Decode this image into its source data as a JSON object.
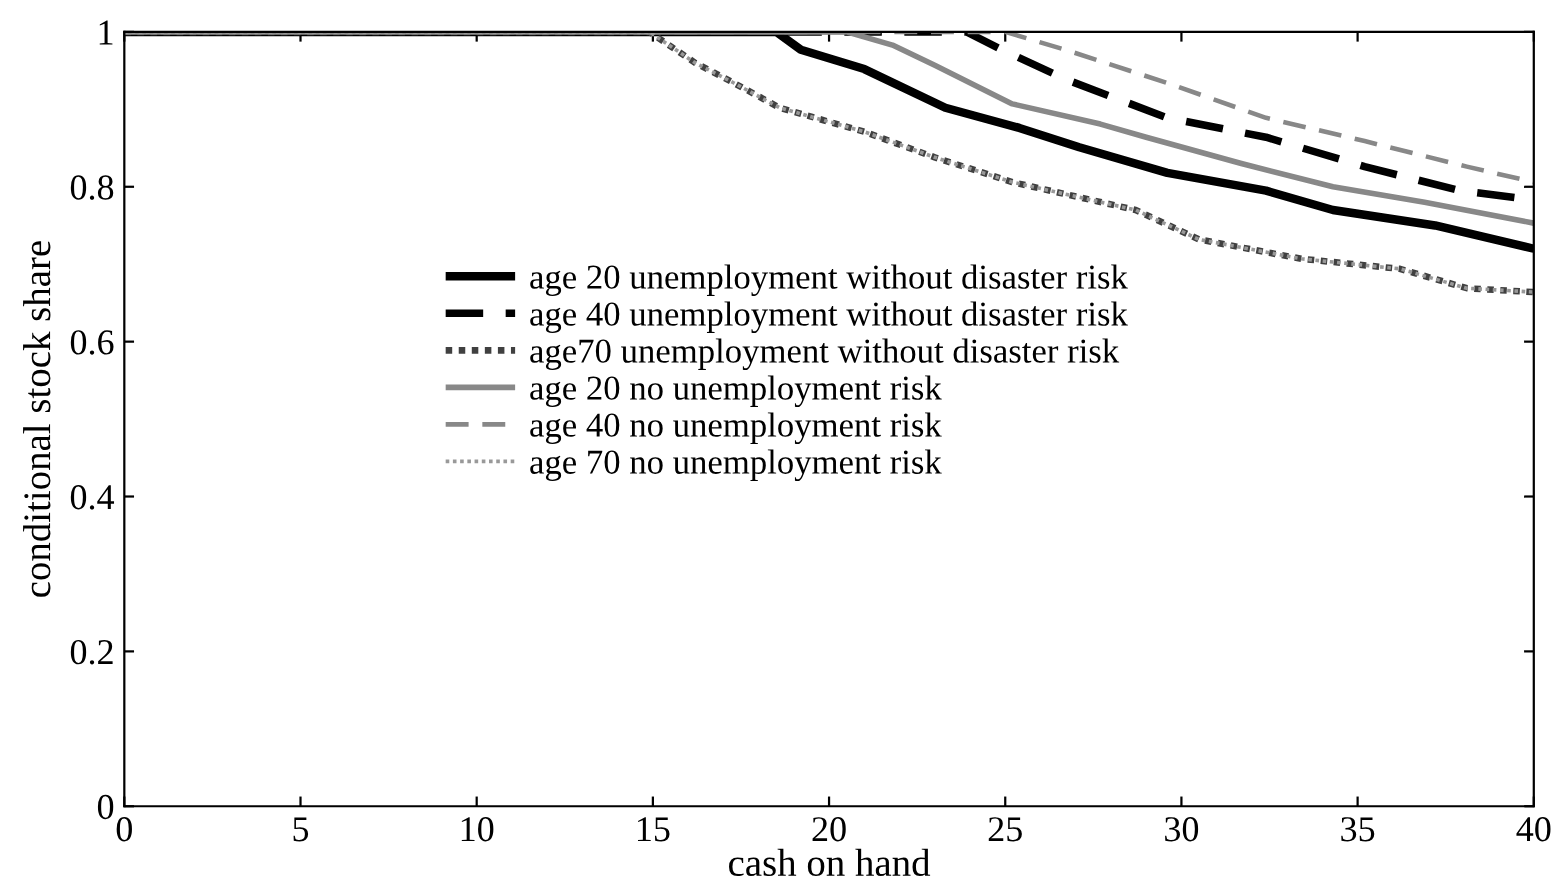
{
  "chart_data": {
    "type": "line",
    "xlabel": "cash on hand",
    "ylabel": "conditional stock share",
    "xlim": [
      0,
      40
    ],
    "ylim": [
      0,
      1
    ],
    "xticks": [
      0,
      5,
      10,
      15,
      20,
      25,
      30,
      35,
      40
    ],
    "yticks": [
      0,
      0.2,
      0.4,
      0.6,
      0.8,
      1
    ],
    "grid": false,
    "legend": "center",
    "marker": "none",
    "series": [
      {
        "name": "age 20 unemployment without disaster risk",
        "color": "#000000",
        "line_style": "solid",
        "x": [
          0,
          18.5,
          19.2,
          21.0,
          23.3,
          25.4,
          27.1,
          29.6,
          32.4,
          34.3,
          37.2,
          40
        ],
        "values": [
          1,
          1,
          0.977,
          0.952,
          0.902,
          0.876,
          0.851,
          0.818,
          0.795,
          0.77,
          0.75,
          0.72
        ]
      },
      {
        "name": "age 40 unemployment without disaster risk",
        "color": "#000000",
        "line_style": "dashed",
        "x": [
          0,
          23.9,
          24.9,
          26.7,
          29.6,
          32.4,
          35.2,
          37.9,
          40
        ],
        "values": [
          1,
          1,
          0.977,
          0.939,
          0.889,
          0.864,
          0.826,
          0.795,
          0.783
        ]
      },
      {
        "name": "age70 unemployment without disaster risk",
        "color": "#404040",
        "line_style": "dotted",
        "x": [
          0,
          14.9,
          16.2,
          17.3,
          18.6,
          21.0,
          23.0,
          25.2,
          28.7,
          30.5,
          33.4,
          36.2,
          38.1,
          40
        ],
        "values": [
          1,
          1,
          0.96,
          0.934,
          0.902,
          0.871,
          0.838,
          0.806,
          0.77,
          0.732,
          0.707,
          0.694,
          0.669,
          0.664
        ]
      },
      {
        "name": "age 20 no unemployment risk",
        "color": "#888888",
        "line_style": "solid",
        "x": [
          0,
          20.5,
          21.8,
          23.0,
          25.2,
          27.7,
          29.0,
          31.7,
          34.3,
          36.9,
          40
        ],
        "values": [
          1,
          1,
          0.983,
          0.957,
          0.907,
          0.881,
          0.864,
          0.83,
          0.8,
          0.78,
          0.753
        ]
      },
      {
        "name": "age 40 no unemployment risk",
        "color": "#888888",
        "line_style": "dashed",
        "x": [
          0,
          25.0,
          26.7,
          29.6,
          32.4,
          35.2,
          38.1,
          40
        ],
        "values": [
          1,
          1,
          0.977,
          0.934,
          0.889,
          0.859,
          0.826,
          0.806
        ]
      },
      {
        "name": "age 70 no unemployment risk",
        "color": "#999999",
        "line_style": "dotted",
        "x": [
          0,
          14.9,
          16.2,
          17.3,
          18.6,
          21.0,
          23.0,
          25.2,
          28.7,
          30.5,
          33.4,
          36.2,
          38.1,
          40
        ],
        "values": [
          1,
          1,
          0.96,
          0.934,
          0.902,
          0.871,
          0.838,
          0.806,
          0.77,
          0.732,
          0.707,
          0.694,
          0.669,
          0.664
        ]
      }
    ]
  }
}
